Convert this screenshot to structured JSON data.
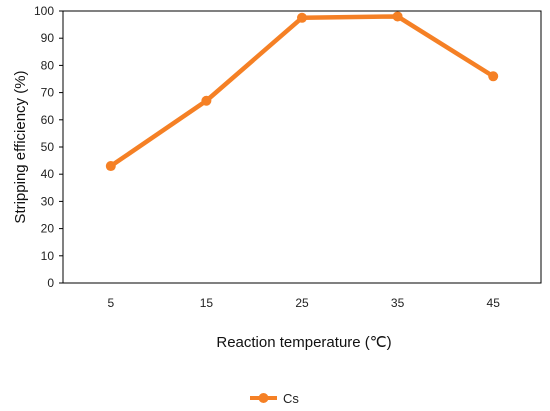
{
  "chart_data": {
    "type": "line",
    "categories": [
      "5",
      "15",
      "25",
      "35",
      "45"
    ],
    "series": [
      {
        "name": "Cs",
        "values": [
          43,
          67,
          97.5,
          98,
          76
        ]
      }
    ],
    "xlabel": "Reaction temperature (℃)",
    "ylabel": "Stripping efficiency (%)",
    "ylim": [
      0,
      100
    ],
    "ytick_step": 10,
    "grid": false,
    "legend": "bottom",
    "colors": {
      "series": "#F58025",
      "axis": "#000000"
    }
  }
}
